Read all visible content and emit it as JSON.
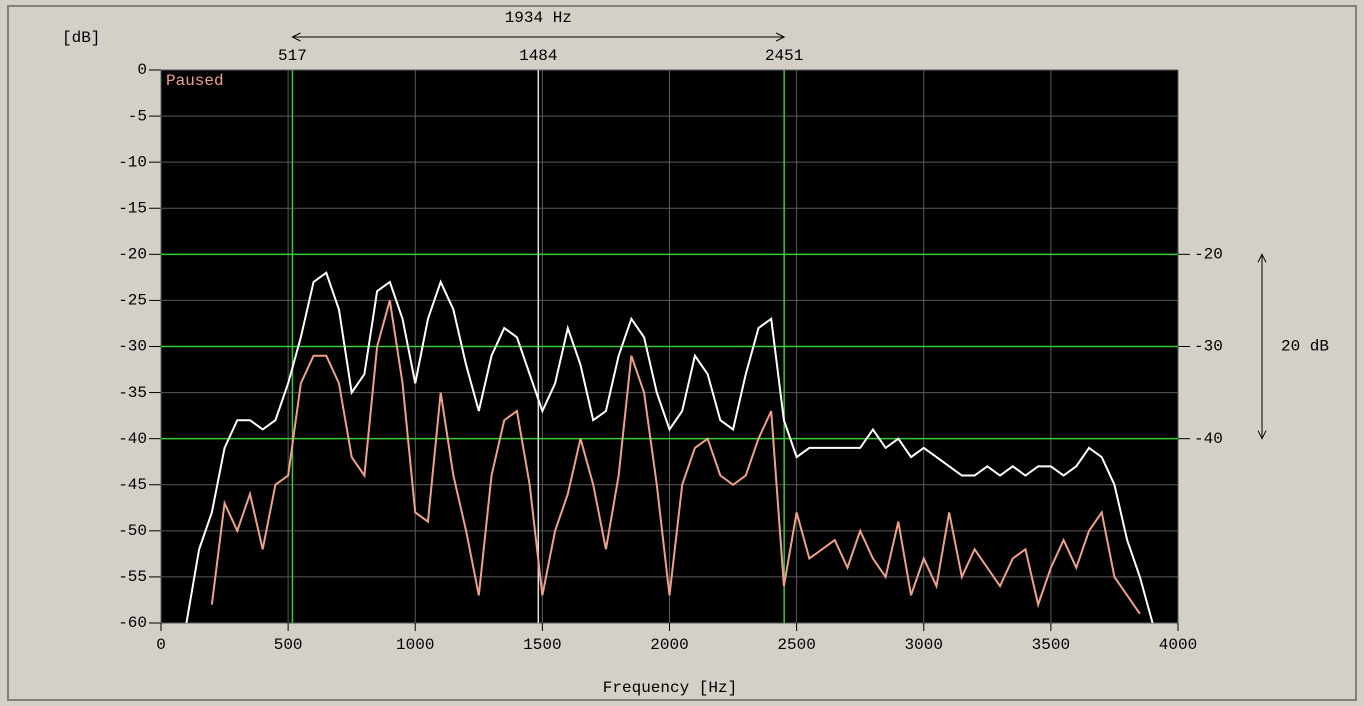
{
  "chart_data": {
    "type": "line",
    "y_label": "[dB]",
    "x_label": "Frequency [Hz]",
    "status": "Paused",
    "span_label": "1934 Hz",
    "range_label": "20 dB",
    "plot_background": "#000000",
    "grid": true,
    "grid_color": "#5a5a5a",
    "xlim": [
      0,
      4000
    ],
    "xticks": [
      0,
      500,
      1000,
      1500,
      2000,
      2500,
      3000,
      3500,
      4000
    ],
    "ylim": [
      -60,
      0
    ],
    "yticks": [
      0,
      -5,
      -10,
      -15,
      -20,
      -25,
      -30,
      -35,
      -40,
      -45,
      -50,
      -55,
      -60
    ],
    "right_ticks": [
      -20,
      -30,
      -40
    ],
    "reference_color": "#33cc33",
    "cursors": [
      {
        "value": 517,
        "color": "#33cc33"
      },
      {
        "value": 1484,
        "color": "#e0e0e0"
      },
      {
        "value": 2451,
        "color": "#33cc33"
      }
    ],
    "x": [
      100,
      150,
      200,
      250,
      300,
      350,
      400,
      450,
      500,
      550,
      600,
      650,
      700,
      750,
      800,
      850,
      900,
      950,
      1000,
      1050,
      1100,
      1150,
      1200,
      1250,
      1300,
      1350,
      1400,
      1450,
      1500,
      1550,
      1600,
      1650,
      1700,
      1750,
      1800,
      1850,
      1900,
      1950,
      2000,
      2050,
      2100,
      2150,
      2200,
      2250,
      2300,
      2350,
      2400,
      2450,
      2500,
      2550,
      2600,
      2650,
      2700,
      2750,
      2800,
      2850,
      2900,
      2950,
      3000,
      3050,
      3100,
      3150,
      3200,
      3250,
      3300,
      3350,
      3400,
      3450,
      3500,
      3550,
      3600,
      3650,
      3700,
      3750,
      3800,
      3850,
      3900
    ],
    "series": [
      {
        "color": "#ffffff",
        "values": [
          -60,
          -52,
          -48,
          -41,
          -38,
          -38,
          -39,
          -38,
          -34,
          -29,
          -23,
          -22,
          -26,
          -35,
          -33,
          -24,
          -23,
          -27,
          -34,
          -27,
          -23,
          -26,
          -32,
          -37,
          -31,
          -28,
          -29,
          -33,
          -37,
          -34,
          -28,
          -32,
          -38,
          -37,
          -31,
          -27,
          -29,
          -35,
          -39,
          -37,
          -31,
          -33,
          -38,
          -39,
          -33,
          -28,
          -27,
          -38,
          -42,
          -41,
          -41,
          -41,
          -41,
          -41,
          -39,
          -41,
          -40,
          -42,
          -41,
          -42,
          -43,
          -44,
          -44,
          -43,
          -44,
          -43,
          -44,
          -43,
          -43,
          -44,
          -43,
          -41,
          -42,
          -45,
          -51,
          -55,
          -60
        ]
      },
      {
        "color": "#f0a08a",
        "values": [
          null,
          null,
          -58,
          -47,
          -50,
          -46,
          -52,
          -45,
          -44,
          -34,
          -31,
          -31,
          -34,
          -42,
          -44,
          -30,
          -25,
          -34,
          -48,
          -49,
          -35,
          -44,
          -50,
          -57,
          -44,
          -38,
          -37,
          -45,
          -57,
          -50,
          -46,
          -40,
          -45,
          -52,
          -44,
          -31,
          -35,
          -45,
          -57,
          -45,
          -41,
          -40,
          -44,
          -45,
          -44,
          -40,
          -37,
          -56,
          -48,
          -53,
          -52,
          -51,
          -54,
          -50,
          -53,
          -55,
          -49,
          -57,
          -53,
          -56,
          -48,
          -55,
          -52,
          -54,
          -56,
          -53,
          -52,
          -58,
          -54,
          -51,
          -54,
          -50,
          -48,
          -55,
          -57,
          -59,
          null
        ]
      }
    ]
  }
}
